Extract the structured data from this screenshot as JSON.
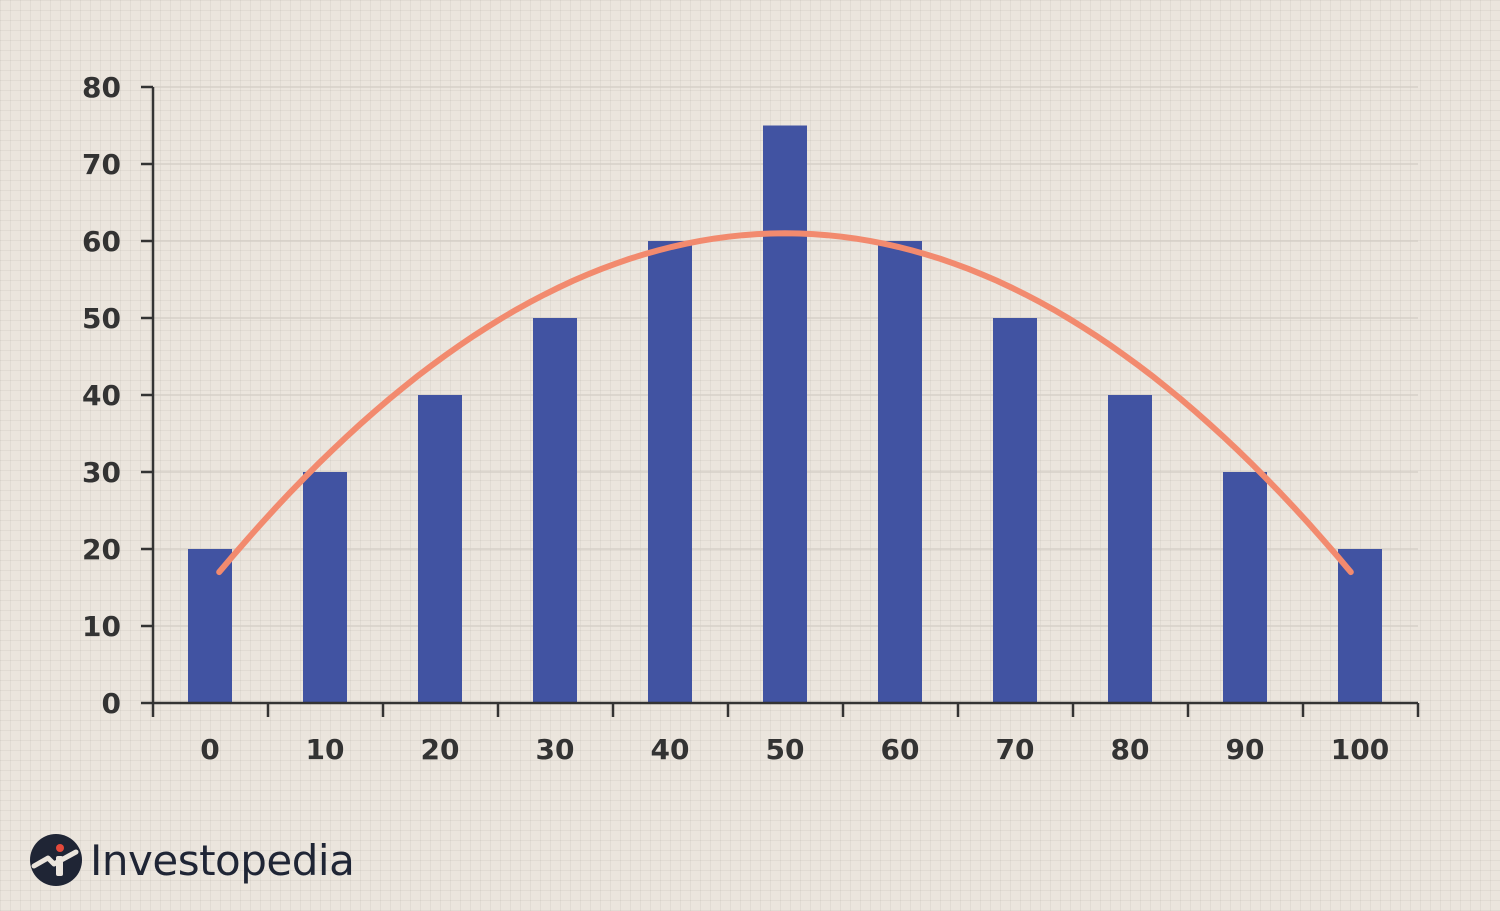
{
  "chart_data": {
    "type": "bar",
    "categories": [
      "0",
      "10",
      "20",
      "30",
      "40",
      "50",
      "60",
      "70",
      "80",
      "90",
      "100"
    ],
    "values": [
      20,
      30,
      40,
      50,
      60,
      75,
      60,
      50,
      40,
      30,
      20
    ],
    "curve": {
      "type": "line",
      "shape": "parabolic fit",
      "endpoints_y": 17,
      "peak_y": 61
    },
    "ylim": [
      0,
      80
    ],
    "yticks": [
      0,
      10,
      20,
      30,
      40,
      50,
      60,
      70,
      80
    ],
    "title": "",
    "xlabel": "",
    "ylabel": "",
    "grid": true,
    "colors": {
      "bar": "#4153a2",
      "curve": "#f28a6e",
      "axis": "#333333",
      "grid": "#d6d0c8",
      "background": "#ebe5dd"
    }
  },
  "brand": {
    "name": "Investopedia",
    "icon": "investopedia-logo-icon"
  }
}
